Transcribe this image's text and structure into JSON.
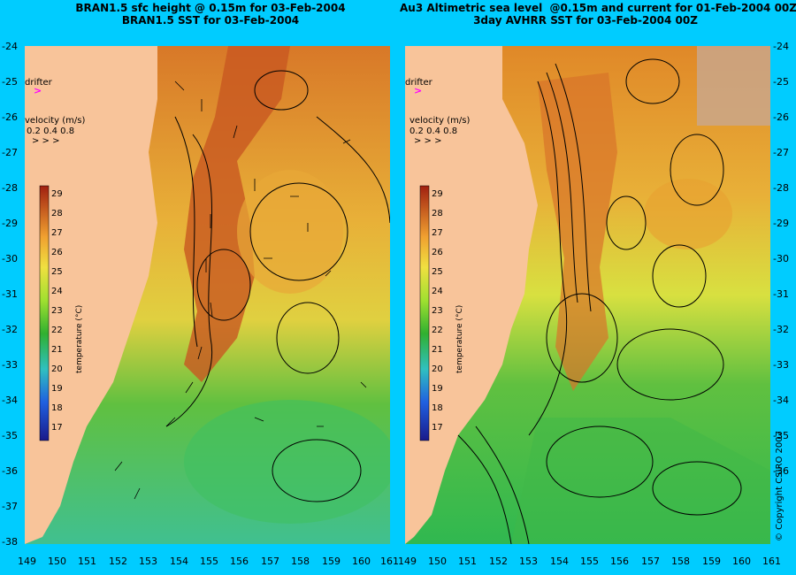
{
  "titles": {
    "left": "BRAN1.5 sfc height @ 0.15m for 03-Feb-2004\nBRAN1.5 SST for 03-Feb-2004",
    "right": "Au3 Altimetric sea level  @0.15m and current for 01-Feb-2004 00Z\n3day AVHRR SST for 03-Feb-2004 00Z"
  },
  "legend": {
    "drifter_label": "drifter",
    "velocity_label": "velocity (m/s)",
    "velocity_values": "0.2 0.4 0.8",
    "temperature_title": "temperature (°C)",
    "temperature_ticks": [
      "29",
      "28",
      "27",
      "26",
      "25",
      "24",
      "23",
      "22",
      "21",
      "20",
      "19",
      "18",
      "17"
    ]
  },
  "axes": {
    "lat_ticks": [
      "-24",
      "-25",
      "-26",
      "-27",
      "-28",
      "-29",
      "-30",
      "-31",
      "-32",
      "-33",
      "-34",
      "-35",
      "-36",
      "-37",
      "-38"
    ],
    "lon_ticks": [
      "149",
      "150",
      "151",
      "152",
      "153",
      "154",
      "155",
      "156",
      "157",
      "158",
      "159",
      "160",
      "161"
    ]
  },
  "colors": {
    "background": "#00ccff",
    "land": "#f8c49a",
    "ocean_warm": "#c8501a",
    "ocean_mid": "#e8d040",
    "ocean_cool": "#30b840",
    "cold_band": "#40c8c8"
  },
  "copyright": "© Copyright CSIRO 2007"
}
